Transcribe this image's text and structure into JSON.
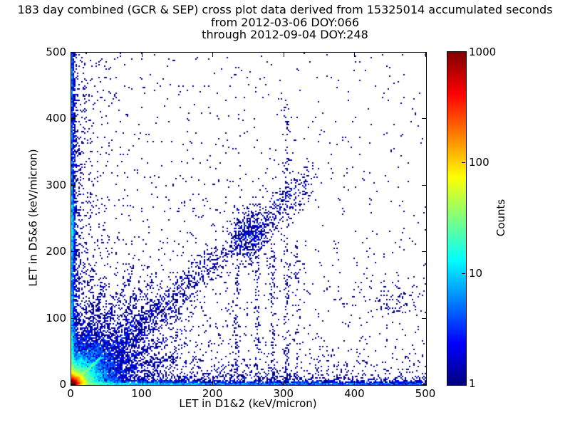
{
  "figure": {
    "title_line1": "183 day combined (GCR & SEP) cross plot data derived from 15325014 accumulated seconds",
    "title_line2": "from 2012-03-06 DOY:066",
    "title_line3": "through 2012-09-04 DOY:248",
    "background_color": "#ffffff",
    "text_color": "#000000"
  },
  "chart_data": {
    "type": "heatmap",
    "subtype": "2d-histogram-cross-plot",
    "xlabel": "LET in D1&2 (keV/micron)",
    "ylabel": "LET in D5&6 (keV/micron)",
    "xlim": [
      0,
      500
    ],
    "ylim": [
      0,
      500
    ],
    "xticks": [
      0,
      100,
      200,
      300,
      400,
      500
    ],
    "yticks": [
      0,
      100,
      200,
      300,
      400,
      500
    ],
    "grid": false,
    "colormap": "jet",
    "single_count_color": "#000080",
    "max_count_color": "#800000",
    "colorbar": {
      "label": "Counts",
      "scale": "log",
      "min": 1,
      "max": 1000,
      "ticks": [
        1,
        10,
        100,
        1000
      ],
      "position": "right"
    },
    "bin_size_px": 2,
    "seed": 20120306,
    "density_components": [
      {
        "kind": "radial_exp",
        "n": 26000,
        "scale": 5
      },
      {
        "kind": "radial_exp",
        "n": 9000,
        "scale": 17
      },
      {
        "kind": "radial_exp",
        "n": 5200,
        "scale": 52
      },
      {
        "kind": "ray",
        "n": 300,
        "angle_deg": 16,
        "len_scale": 70,
        "max_len": 160,
        "sigma": 3.2
      },
      {
        "kind": "ray",
        "n": 300,
        "angle_deg": 27,
        "len_scale": 75,
        "max_len": 180,
        "sigma": 3.2
      },
      {
        "kind": "ray",
        "n": 300,
        "angle_deg": 37,
        "len_scale": 80,
        "max_len": 200,
        "sigma": 3.2
      },
      {
        "kind": "ray",
        "n": 380,
        "angle_deg": 45,
        "len_scale": 90,
        "max_len": 230,
        "sigma": 3.4
      },
      {
        "kind": "ray",
        "n": 300,
        "angle_deg": 54,
        "len_scale": 80,
        "max_len": 200,
        "sigma": 3.2
      },
      {
        "kind": "ray",
        "n": 300,
        "angle_deg": 63,
        "len_scale": 75,
        "max_len": 180,
        "sigma": 3.2
      },
      {
        "kind": "ray",
        "n": 280,
        "angle_deg": 73,
        "len_scale": 65,
        "max_len": 160,
        "sigma": 3.2
      },
      {
        "kind": "strip_bottom",
        "n": 4800,
        "pow": 2.3,
        "thick": 2.1
      },
      {
        "kind": "strip_bottom",
        "n": 1200,
        "pow": 1.9,
        "thick": 14
      },
      {
        "kind": "strip_left",
        "n": 3000,
        "pow": 2.0,
        "thick": 2.1
      },
      {
        "kind": "strip_left",
        "n": 700,
        "pow": 1.7,
        "thick": 12
      },
      {
        "kind": "diag_line",
        "n": 650,
        "length": 42,
        "sigma": 1.1
      },
      {
        "kind": "diag_band",
        "n": 1500,
        "max_t": 340,
        "slope": 0.92,
        "sx": 9,
        "sy": 13
      },
      {
        "kind": "blob",
        "n": 400,
        "cx": 253,
        "cy": 222,
        "sx": 13,
        "sy": 19
      },
      {
        "kind": "blob",
        "n": 260,
        "cx": 2,
        "cy": 240,
        "sx": 1.6,
        "sy": 20
      },
      {
        "kind": "blob",
        "n": 90,
        "cx": 462,
        "cy": 130,
        "sx": 22,
        "sy": 20
      },
      {
        "kind": "vline",
        "n": 120,
        "x": 233,
        "ymax": 270,
        "sigma": 2.2
      },
      {
        "kind": "vline",
        "n": 80,
        "x": 262,
        "ymax": 190,
        "sigma": 2.2
      },
      {
        "kind": "vline",
        "n": 100,
        "x": 284,
        "ymax": 250,
        "sigma": 2.2
      },
      {
        "kind": "vline",
        "n": 150,
        "x": 304,
        "ymax": 430,
        "sigma": 2.6
      },
      {
        "kind": "vline",
        "n": 60,
        "x": 318,
        "ymax": 210,
        "sigma": 2.0
      },
      {
        "kind": "field",
        "n": 1750,
        "pow": 1.7
      }
    ]
  }
}
